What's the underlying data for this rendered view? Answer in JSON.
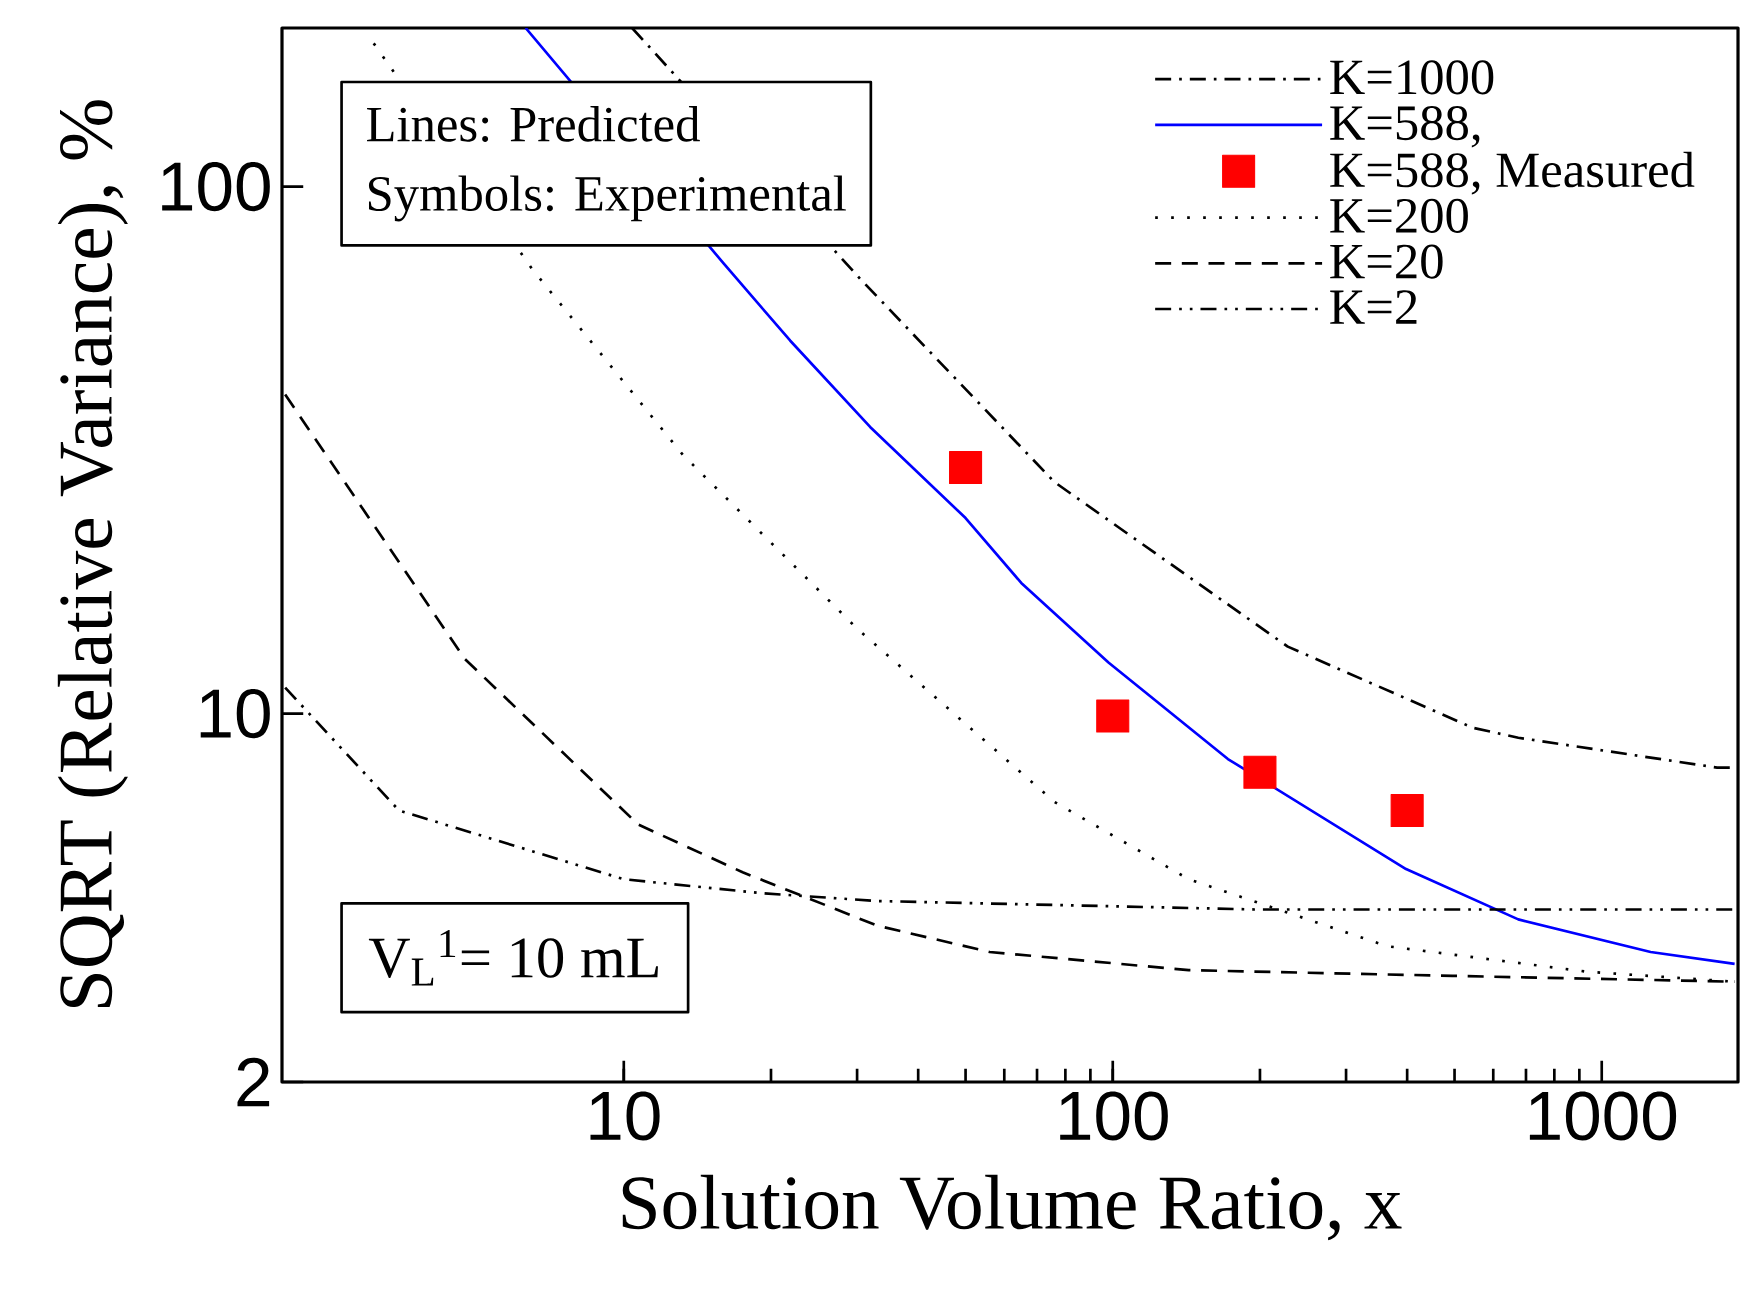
{
  "chart_data": {
    "type": "line",
    "xlabel": "Solution Volume Ratio, x",
    "ylabel": "SQRT (Relative Variance), %",
    "log": "xy",
    "xlim": [
      2,
      1900
    ],
    "ylim": [
      2,
      200
    ],
    "xticks": [
      10,
      100,
      1000
    ],
    "yticks": [
      2,
      10,
      100
    ],
    "legend": "top right",
    "annotations": [
      "Lines: Predicted",
      "Symbols: Experimental",
      "V$_{L}$$^{1}$= 10 mL"
    ],
    "series": [
      {
        "name": "K=1000",
        "color": "#000000",
        "line_style": "dashdot",
        "marker": "none",
        "x": [
          10.4,
          30.5,
          76,
          228,
          545,
          675,
          1722,
          1900
        ],
        "values": [
          200,
          66.7,
          27.5,
          13.4,
          9.4,
          9.0,
          7.9,
          7.9
        ]
      },
      {
        "name": "K=588,",
        "color": "#0000ff",
        "line_style": "solid",
        "marker": "none",
        "x": [
          6.3,
          16,
          21.9,
          31.9,
          50,
          65,
          98,
          172,
          398,
          675,
          1259,
          1870
        ],
        "values": [
          200,
          71.5,
          51,
          35,
          23.5,
          17.7,
          12.5,
          8.2,
          5.07,
          4.07,
          3.53,
          3.35
        ]
      },
      {
        "name": "K=588, Measured",
        "type": "scatter",
        "color": "#ff0000",
        "marker": "square",
        "x": [
          50,
          100,
          200,
          400
        ],
        "values": [
          29.3,
          9.9,
          7.74,
          6.55
        ]
      },
      {
        "name": "K=200",
        "color": "#000000",
        "line_style": "dotted",
        "marker": "none",
        "x": [
          3.08,
          6.5,
          13.2,
          30,
          76,
          143,
          364,
          927,
          1870
        ],
        "values": [
          187,
          69.7,
          31,
          14.5,
          6.8,
          4.85,
          3.62,
          3.24,
          3.1
        ]
      },
      {
        "name": "K=20",
        "color": "#000000",
        "line_style": "dashed",
        "marker": "none",
        "x": [
          2.03,
          4.73,
          10.7,
          17.5,
          33,
          56,
          143,
          495,
          1870
        ],
        "values": [
          40.3,
          12.7,
          6.16,
          5.0,
          3.96,
          3.53,
          3.26,
          3.18,
          3.1
        ]
      },
      {
        "name": "K=2",
        "color": "#000000",
        "line_style": "dashdotdot",
        "marker": "none",
        "x": [
          2.03,
          3.47,
          10,
          19.3,
          33,
          195,
          1870
        ],
        "values": [
          11.2,
          6.55,
          4.85,
          4.56,
          4.41,
          4.25,
          4.25
        ]
      }
    ]
  }
}
